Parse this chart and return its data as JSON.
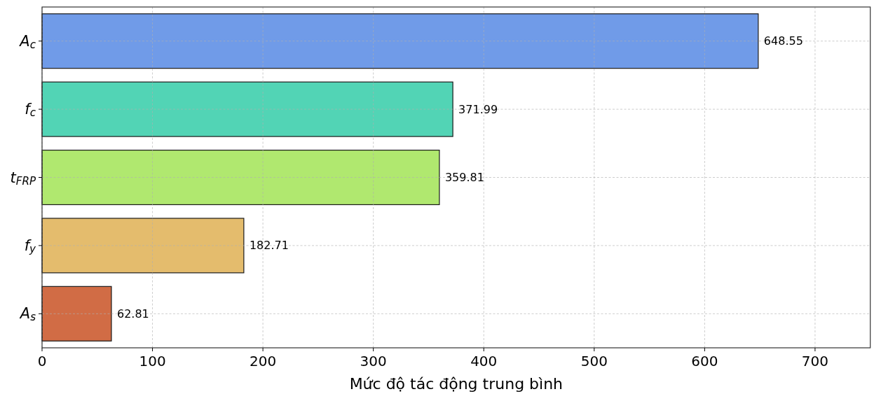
{
  "chart_data": {
    "type": "bar",
    "orientation": "horizontal",
    "xlabel": "Mức độ tác động trung bình",
    "categories": [
      "A$_{c}$",
      "f$_{c}$",
      "t$_{FRP}$",
      "f$_{y}$",
      "A$_{s}$"
    ],
    "values": [
      648.55,
      371.99,
      359.81,
      182.71,
      62.81
    ],
    "colors": [
      "#709be8",
      "#52d4b5",
      "#b0e86f",
      "#e4bc6d",
      "#d16c45"
    ],
    "xlim": [
      0,
      750
    ],
    "xticks": [
      0,
      100,
      200,
      300,
      400,
      500,
      600,
      700
    ],
    "grid": true,
    "data_labels": true
  }
}
